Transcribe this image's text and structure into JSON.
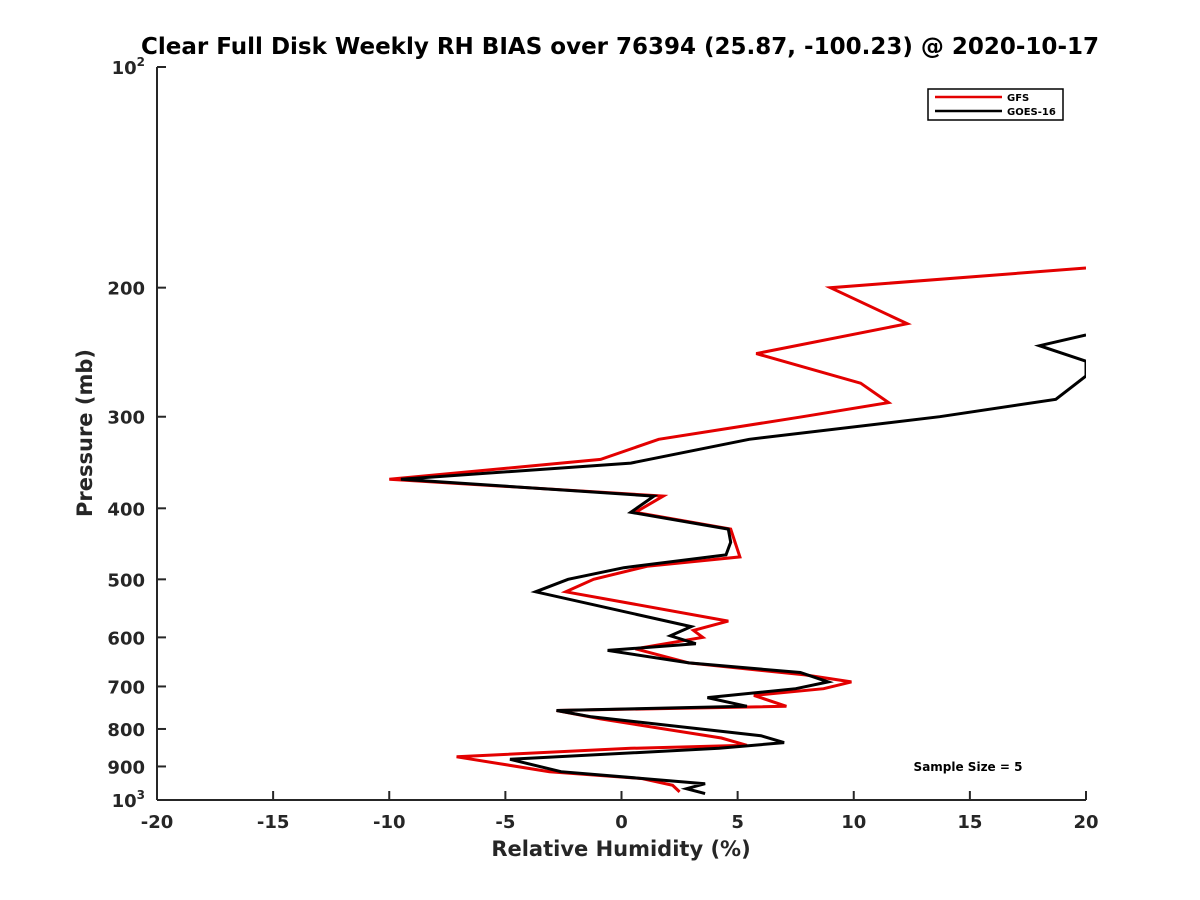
{
  "chart_data": {
    "type": "line",
    "title": "Clear Full Disk Weekly RH BIAS over 76394 (25.87, -100.23) @ 2020-10-17",
    "xlabel": "Relative Humidity (%)",
    "ylabel": "Pressure (mb)",
    "xlim": [
      -20,
      20
    ],
    "ylim": [
      100,
      1000
    ],
    "y_scale": "log",
    "y_reversed": true,
    "grid": false,
    "x_ticks": [
      {
        "value": -20,
        "label": "-20"
      },
      {
        "value": -15,
        "label": "-15"
      },
      {
        "value": -10,
        "label": "-10"
      },
      {
        "value": -5,
        "label": "-5"
      },
      {
        "value": 0,
        "label": "0"
      },
      {
        "value": 5,
        "label": "5"
      },
      {
        "value": 10,
        "label": "10"
      },
      {
        "value": 15,
        "label": "15"
      },
      {
        "value": 20,
        "label": "20"
      }
    ],
    "y_ticks": [
      {
        "value": 100,
        "label": "10",
        "sup": "2"
      },
      {
        "value": 200,
        "label": "200",
        "sup": ""
      },
      {
        "value": 300,
        "label": "300",
        "sup": ""
      },
      {
        "value": 400,
        "label": "400",
        "sup": ""
      },
      {
        "value": 500,
        "label": "500",
        "sup": ""
      },
      {
        "value": 600,
        "label": "600",
        "sup": ""
      },
      {
        "value": 700,
        "label": "700",
        "sup": ""
      },
      {
        "value": 800,
        "label": "800",
        "sup": ""
      },
      {
        "value": 900,
        "label": "900",
        "sup": ""
      },
      {
        "value": 1000,
        "label": "10",
        "sup": "3"
      }
    ],
    "legend_position": "top-right",
    "annotation": "Sample Size = 5",
    "series": [
      {
        "name": "GFS",
        "color": "#e30000",
        "points": [
          {
            "x": 20.0,
            "y": 188
          },
          {
            "x": 9.0,
            "y": 200
          },
          {
            "x": 12.3,
            "y": 224
          },
          {
            "x": 5.8,
            "y": 246
          },
          {
            "x": 10.3,
            "y": 270
          },
          {
            "x": 11.5,
            "y": 287
          },
          {
            "x": 7.8,
            "y": 300
          },
          {
            "x": 1.6,
            "y": 322
          },
          {
            "x": -0.9,
            "y": 343
          },
          {
            "x": -10.0,
            "y": 365
          },
          {
            "x": 1.8,
            "y": 385
          },
          {
            "x": 0.6,
            "y": 405
          },
          {
            "x": 4.7,
            "y": 427
          },
          {
            "x": 5.1,
            "y": 466
          },
          {
            "x": 1.1,
            "y": 480
          },
          {
            "x": -1.2,
            "y": 500
          },
          {
            "x": -2.4,
            "y": 520
          },
          {
            "x": 4.6,
            "y": 570
          },
          {
            "x": 3.1,
            "y": 587
          },
          {
            "x": 3.5,
            "y": 600
          },
          {
            "x": 0.6,
            "y": 622
          },
          {
            "x": 2.9,
            "y": 650
          },
          {
            "x": 7.9,
            "y": 675
          },
          {
            "x": 9.9,
            "y": 690
          },
          {
            "x": 8.7,
            "y": 705
          },
          {
            "x": 5.7,
            "y": 720
          },
          {
            "x": 7.1,
            "y": 745
          },
          {
            "x": -2.8,
            "y": 755
          },
          {
            "x": -0.9,
            "y": 775
          },
          {
            "x": 4.3,
            "y": 823
          },
          {
            "x": 5.4,
            "y": 842
          },
          {
            "x": 0.4,
            "y": 850
          },
          {
            "x": -7.1,
            "y": 873
          },
          {
            "x": -3.1,
            "y": 915
          },
          {
            "x": 0.9,
            "y": 935
          },
          {
            "x": 2.2,
            "y": 955
          },
          {
            "x": 2.5,
            "y": 975
          }
        ]
      },
      {
        "name": "GOES-16",
        "color": "#000000",
        "points": [
          {
            "x": 20.0,
            "y": 232
          },
          {
            "x": 18.0,
            "y": 240
          },
          {
            "x": 20.0,
            "y": 252
          },
          {
            "x": 20.0,
            "y": 264
          },
          {
            "x": 18.7,
            "y": 284
          },
          {
            "x": 13.7,
            "y": 300
          },
          {
            "x": 5.5,
            "y": 322
          },
          {
            "x": 0.4,
            "y": 347
          },
          {
            "x": -9.5,
            "y": 365
          },
          {
            "x": 1.4,
            "y": 385
          },
          {
            "x": 0.4,
            "y": 405
          },
          {
            "x": 4.6,
            "y": 427
          },
          {
            "x": 4.7,
            "y": 445
          },
          {
            "x": 4.5,
            "y": 463
          },
          {
            "x": 0.1,
            "y": 482
          },
          {
            "x": -2.3,
            "y": 500
          },
          {
            "x": -3.7,
            "y": 520
          },
          {
            "x": 3.0,
            "y": 580
          },
          {
            "x": 2.1,
            "y": 597
          },
          {
            "x": 3.2,
            "y": 612
          },
          {
            "x": -0.6,
            "y": 625
          },
          {
            "x": 2.9,
            "y": 650
          },
          {
            "x": 7.7,
            "y": 670
          },
          {
            "x": 8.9,
            "y": 690
          },
          {
            "x": 7.5,
            "y": 705
          },
          {
            "x": 3.7,
            "y": 725
          },
          {
            "x": 5.4,
            "y": 745
          },
          {
            "x": -2.8,
            "y": 755
          },
          {
            "x": -1.3,
            "y": 770
          },
          {
            "x": 6.0,
            "y": 817
          },
          {
            "x": 7.0,
            "y": 835
          },
          {
            "x": 4.2,
            "y": 850
          },
          {
            "x": -4.8,
            "y": 880
          },
          {
            "x": -2.6,
            "y": 915
          },
          {
            "x": 3.6,
            "y": 950
          },
          {
            "x": 2.8,
            "y": 965
          },
          {
            "x": 3.6,
            "y": 980
          }
        ]
      }
    ]
  }
}
